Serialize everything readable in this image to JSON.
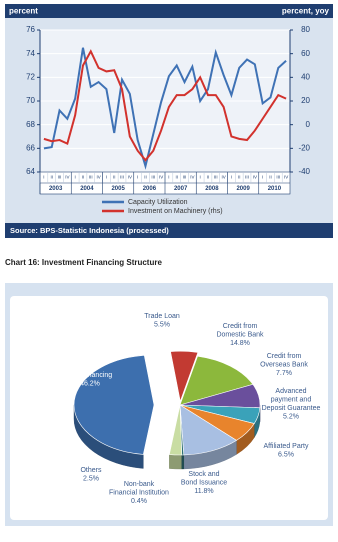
{
  "chart_data": [
    {
      "type": "line",
      "y_label": "percent",
      "y2_label": "percent, yoy",
      "source": "Source: BPS-Statistic Indonesia (processed)",
      "categories": [
        "I",
        "II",
        "III",
        "IV",
        "I",
        "II",
        "III",
        "IV",
        "I",
        "II",
        "III",
        "IV",
        "I",
        "II",
        "III",
        "IV",
        "I",
        "II",
        "III",
        "IV",
        "I",
        "II",
        "III",
        "IV",
        "I",
        "II",
        "III",
        "IV",
        "I",
        "II",
        "III",
        "IV"
      ],
      "groups": [
        "2003",
        "2004",
        "2005",
        "2006",
        "2007",
        "2008",
        "2009",
        "2010"
      ],
      "ylim": [
        64,
        76
      ],
      "yticks": [
        64,
        66,
        68,
        70,
        72,
        74,
        76
      ],
      "y2lim": [
        -40,
        80
      ],
      "y2ticks": [
        -40,
        -20,
        0,
        20,
        40,
        60,
        80
      ],
      "grid": true,
      "series": [
        {
          "name": "Capacity Utilization",
          "color": "#3f72b5",
          "values": [
            66.0,
            66.1,
            69.2,
            68.5,
            70.2,
            74.5,
            71.2,
            71.6,
            71.0,
            67.3,
            71.8,
            70.6,
            66.7,
            64.5,
            67.2,
            69.9,
            72.1,
            73.0,
            71.6,
            72.9,
            70.0,
            71.0,
            74.1,
            72.2,
            70.5,
            72.8,
            73.5,
            73.1,
            69.8,
            70.3,
            72.8,
            73.4
          ]
        },
        {
          "name": "Investment on Machinery (rhs)",
          "color": "#d2322d",
          "axis": "y2",
          "values": [
            -12,
            -14,
            -13,
            -16,
            8,
            50,
            62,
            48,
            45,
            46,
            30,
            -10,
            -22,
            -30,
            -22,
            -5,
            15,
            25,
            25,
            30,
            40,
            25,
            25,
            15,
            -10,
            -12,
            -13,
            -5,
            5,
            15,
            25,
            22
          ]
        }
      ]
    },
    {
      "type": "pie",
      "title": "Chart 16: Investment Financing Structure",
      "categories": [
        "Trade Loan",
        "Credit from Domestic Bank",
        "Credit from Overseas Bank",
        "Advanced payment and Deposit Guarantee",
        "Affiliated Party",
        "Stock and Bond Issuance",
        "Non-bank Financial Institution",
        "Others",
        "Self Financing"
      ],
      "values": [
        5.5,
        14.8,
        7.7,
        5.2,
        6.5,
        11.8,
        0.4,
        2.5,
        46.2
      ],
      "value_labels": [
        "5.5%",
        "14.8%",
        "7.7%",
        "5.2%",
        "6.5%",
        "11.8%",
        "0.4%",
        "2.5%",
        "46.2%"
      ],
      "colors": [
        "#c23a32",
        "#8cb83c",
        "#6a4f9c",
        "#3aa2b9",
        "#e8842c",
        "#a8bfe2",
        "#2e6f76",
        "#c9dda3",
        "#3d6fae"
      ]
    }
  ]
}
